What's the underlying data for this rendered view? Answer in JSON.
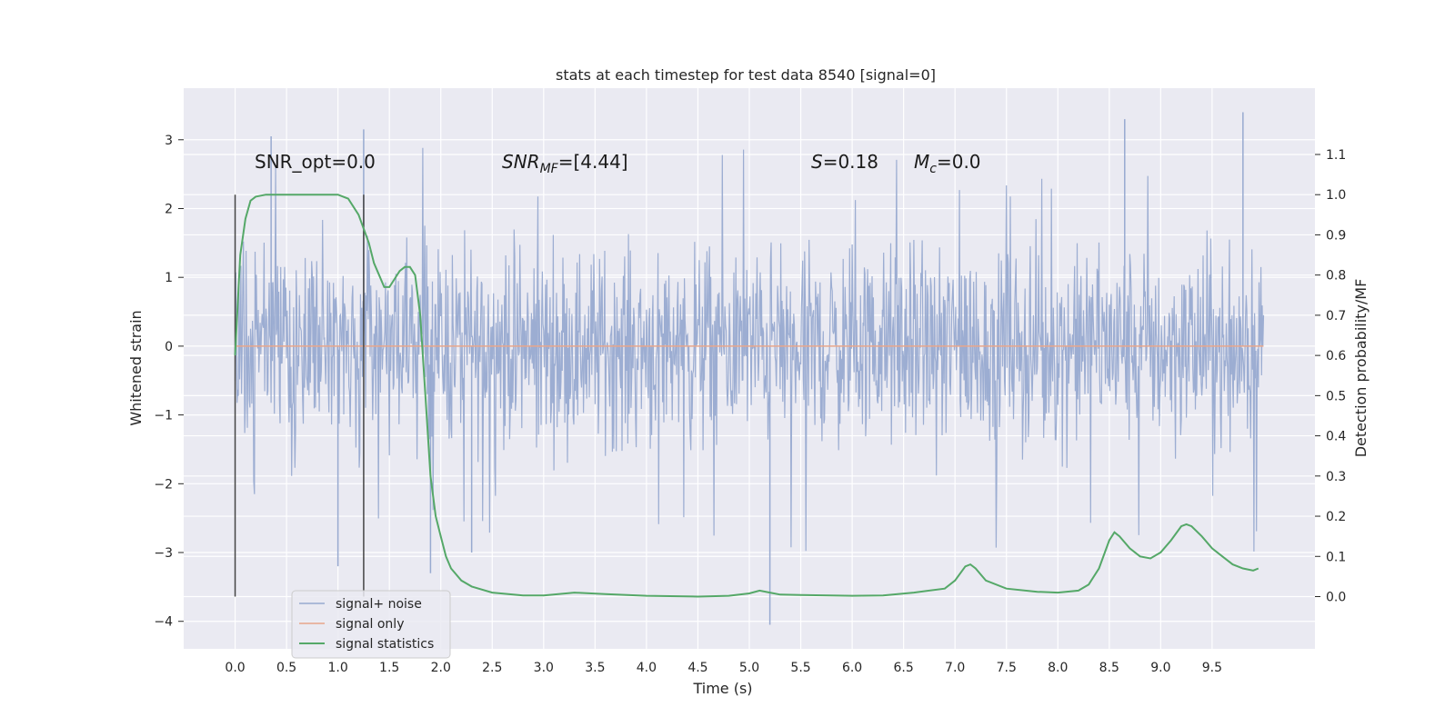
{
  "chart_data": {
    "type": "line",
    "title": "stats at each timestep for test data 8540 [signal=0]",
    "xlabel": "Time (s)",
    "ylabel_left": "Whitened strain",
    "ylabel_right": "Detection probability/MF",
    "xlim": [
      -0.5,
      10.5
    ],
    "ylim_left": [
      -4.4,
      3.75
    ],
    "ylim_right": [
      -0.13,
      1.265
    ],
    "x_ticks": [
      "0.0",
      "0.5",
      "1.0",
      "1.5",
      "2.0",
      "2.5",
      "3.0",
      "3.5",
      "4.0",
      "4.5",
      "5.0",
      "5.5",
      "6.0",
      "6.5",
      "7.0",
      "7.5",
      "8.0",
      "8.5",
      "9.0",
      "9.5"
    ],
    "y_left_ticks": [
      "3",
      "2",
      "1",
      "0",
      "−1",
      "−2",
      "−3",
      "−4"
    ],
    "y_right_ticks": [
      "1.1",
      "1.0",
      "0.9",
      "0.8",
      "0.7",
      "0.6",
      "0.5",
      "0.4",
      "0.3",
      "0.2",
      "0.1",
      "0.0"
    ],
    "grid": true,
    "legend_placement": "lower-left",
    "annotations": {
      "snr_opt": "SNR_opt=0.0",
      "snr_mf_main": "SNR",
      "snr_mf_sub": "MF",
      "snr_mf_value": "=[4.44]",
      "s_main": "S",
      "s_value": "=0.18",
      "mc_main": "M",
      "mc_sub": "c",
      "mc_value": "=0.0"
    },
    "vertical_markers_x": [
      0.0,
      1.25
    ],
    "noise": {
      "x_start": 0.0,
      "x_end": 10.0,
      "envelope_low": -2.0,
      "envelope_high": 2.0
    },
    "series": [
      {
        "name": "signal+ noise",
        "color": "#98aad0",
        "note_values": "dense whitened noise roughly within [-2, 2], spikes to 3.3 and -4.05"
      },
      {
        "name": "signal only",
        "color": "#e8a68b",
        "x": [
          0.0,
          10.0
        ],
        "y": [
          0.0,
          0.0
        ]
      },
      {
        "name": "signal statistics",
        "color": "#55a868",
        "x": [
          0.0,
          0.05,
          0.1,
          0.15,
          0.2,
          0.3,
          0.5,
          0.7,
          0.9,
          1.0,
          1.1,
          1.2,
          1.3,
          1.35,
          1.4,
          1.45,
          1.5,
          1.55,
          1.6,
          1.65,
          1.7,
          1.75,
          1.8,
          1.85,
          1.9,
          1.95,
          2.0,
          2.05,
          2.1,
          2.2,
          2.3,
          2.5,
          2.8,
          3.0,
          3.3,
          3.6,
          4.0,
          4.5,
          4.8,
          5.0,
          5.1,
          5.2,
          5.3,
          5.5,
          6.0,
          6.3,
          6.6,
          6.9,
          7.0,
          7.1,
          7.15,
          7.2,
          7.3,
          7.5,
          7.8,
          8.0,
          8.2,
          8.3,
          8.4,
          8.5,
          8.55,
          8.6,
          8.7,
          8.8,
          8.9,
          9.0,
          9.1,
          9.2,
          9.25,
          9.3,
          9.4,
          9.5,
          9.6,
          9.7,
          9.8,
          9.9,
          9.95
        ],
        "y": [
          0.6,
          0.85,
          0.94,
          0.985,
          0.995,
          1.0,
          1.0,
          1.0,
          1.0,
          1.0,
          0.99,
          0.95,
          0.88,
          0.83,
          0.8,
          0.77,
          0.77,
          0.79,
          0.81,
          0.82,
          0.82,
          0.8,
          0.7,
          0.5,
          0.3,
          0.2,
          0.15,
          0.1,
          0.07,
          0.04,
          0.025,
          0.01,
          0.003,
          0.003,
          0.01,
          0.006,
          0.002,
          0.0,
          0.002,
          0.008,
          0.015,
          0.01,
          0.005,
          0.004,
          0.002,
          0.003,
          0.01,
          0.02,
          0.04,
          0.075,
          0.08,
          0.07,
          0.04,
          0.02,
          0.012,
          0.01,
          0.015,
          0.03,
          0.07,
          0.14,
          0.16,
          0.15,
          0.12,
          0.1,
          0.095,
          0.11,
          0.14,
          0.175,
          0.18,
          0.175,
          0.15,
          0.12,
          0.1,
          0.08,
          0.07,
          0.065,
          0.07
        ]
      }
    ]
  }
}
